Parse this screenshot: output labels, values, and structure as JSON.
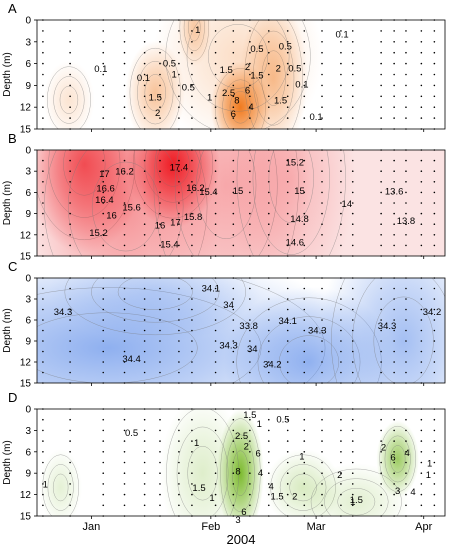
{
  "chart_data": {
    "type": "contour",
    "x_axis": {
      "label": "2004",
      "ticks": [
        "Jan",
        "Feb",
        "Mar",
        "Apr"
      ]
    },
    "y_axis": {
      "label": "Depth (m)",
      "ticks": [
        "0",
        "3",
        "6",
        "9",
        "12",
        "15"
      ],
      "range": [
        0,
        15
      ],
      "reversed": true
    },
    "panels": [
      {
        "letter": "A",
        "color": "#f07a1e",
        "base": "#ffffff",
        "contour_labels": [
          {
            "text": "1",
            "day": 136,
            "d": 1.3
          },
          {
            "text": "0.5",
            "day": 210,
            "d": 3.6
          },
          {
            "text": "0.1",
            "day": 258,
            "d": 1.9
          },
          {
            "text": "0.5",
            "day": 186,
            "d": 3.9
          },
          {
            "text": "0.1",
            "day": 54,
            "d": 6.7
          },
          {
            "text": "0.1",
            "day": 90,
            "d": 7.9
          },
          {
            "text": "0.5",
            "day": 112,
            "d": 5.9
          },
          {
            "text": "1",
            "day": 116,
            "d": 7.4
          },
          {
            "text": "0.5",
            "day": 128,
            "d": 9.2
          },
          {
            "text": "1.5",
            "day": 100,
            "d": 10.6
          },
          {
            "text": "2",
            "day": 102,
            "d": 12.7
          },
          {
            "text": "1",
            "day": 146,
            "d": 10.6
          },
          {
            "text": "1.5",
            "day": 160,
            "d": 6.8
          },
          {
            "text": "2",
            "day": 178,
            "d": 6.4
          },
          {
            "text": "1.5",
            "day": 186,
            "d": 7.6
          },
          {
            "text": "2.5",
            "day": 162,
            "d": 10.0
          },
          {
            "text": "6",
            "day": 166,
            "d": 12.9
          },
          {
            "text": "8",
            "day": 169,
            "d": 11.0
          },
          {
            "text": "6",
            "day": 178,
            "d": 9.6
          },
          {
            "text": "4",
            "day": 181,
            "d": 11.9
          },
          {
            "text": "2",
            "day": 204,
            "d": 6.6
          },
          {
            "text": "1.5",
            "day": 206,
            "d": 11.0
          },
          {
            "text": "0.5",
            "day": 218,
            "d": 6.6
          },
          {
            "text": "0.1",
            "day": 224,
            "d": 8.8
          },
          {
            "text": "0.1",
            "day": 236,
            "d": 13.3
          }
        ]
      },
      {
        "letter": "B",
        "color": "#ee1c24",
        "base": "#fbe3e3",
        "contour_labels": [
          {
            "text": "17",
            "day": 57,
            "d": 3.3
          },
          {
            "text": "16.2",
            "day": 74,
            "d": 3.0
          },
          {
            "text": "16.6",
            "day": 58,
            "d": 5.4
          },
          {
            "text": "16.4",
            "day": 57,
            "d": 7.0
          },
          {
            "text": "16",
            "day": 63,
            "d": 9.2
          },
          {
            "text": "15.6",
            "day": 80,
            "d": 8.1
          },
          {
            "text": "15.2",
            "day": 52,
            "d": 11.7
          },
          {
            "text": "17.4",
            "day": 120,
            "d": 2.4
          },
          {
            "text": "17",
            "day": 117,
            "d": 10.2
          },
          {
            "text": "16",
            "day": 104,
            "d": 10.6
          },
          {
            "text": "15.8",
            "day": 132,
            "d": 9.4
          },
          {
            "text": "16.2",
            "day": 134,
            "d": 5.3
          },
          {
            "text": "15.4",
            "day": 145,
            "d": 5.9
          },
          {
            "text": "15.4",
            "day": 112,
            "d": 13.3
          },
          {
            "text": "15",
            "day": 170,
            "d": 5.7
          },
          {
            "text": "15.2",
            "day": 218,
            "d": 1.7
          },
          {
            "text": "15",
            "day": 222,
            "d": 5.7
          },
          {
            "text": "14.8",
            "day": 222,
            "d": 9.7
          },
          {
            "text": "14.6",
            "day": 218,
            "d": 13.0
          },
          {
            "text": "14",
            "day": 262,
            "d": 7.6
          },
          {
            "text": "13.6",
            "day": 302,
            "d": 5.8
          },
          {
            "text": "13.8",
            "day": 312,
            "d": 10.0
          }
        ]
      },
      {
        "letter": "C",
        "color": "#4a7fe6",
        "base": "#ffffff",
        "contour_labels": [
          {
            "text": "34.1",
            "day": 147,
            "d": 1.4
          },
          {
            "text": "34",
            "day": 162,
            "d": 3.8
          },
          {
            "text": "34.3",
            "day": 22,
            "d": 4.8
          },
          {
            "text": "33.8",
            "day": 179,
            "d": 6.8
          },
          {
            "text": "34.1",
            "day": 212,
            "d": 6.1
          },
          {
            "text": "34.3",
            "day": 162,
            "d": 9.6
          },
          {
            "text": "34",
            "day": 182,
            "d": 10.1
          },
          {
            "text": "34.3",
            "day": 237,
            "d": 7.4
          },
          {
            "text": "34.4",
            "day": 80,
            "d": 11.5
          },
          {
            "text": "34.2",
            "day": 199,
            "d": 12.3
          },
          {
            "text": "34.3",
            "day": 296,
            "d": 6.8
          },
          {
            "text": "34.2",
            "day": 334,
            "d": 4.8
          }
        ]
      },
      {
        "letter": "D",
        "color": "#7cba2e",
        "base": "#ffffff",
        "contour_labels": [
          {
            "text": "0.5",
            "day": 80,
            "d": 3.3
          },
          {
            "text": "1.5",
            "day": 180,
            "d": 0.8
          },
          {
            "text": "0.5",
            "day": 208,
            "d": 1.4
          },
          {
            "text": "1",
            "day": 188,
            "d": 2.0
          },
          {
            "text": "2.5",
            "day": 173,
            "d": 3.7
          },
          {
            "text": "1",
            "day": 135,
            "d": 4.7
          },
          {
            "text": "2",
            "day": 177,
            "d": 5.2
          },
          {
            "text": "6",
            "day": 187,
            "d": 6.2
          },
          {
            "text": "4",
            "day": 189,
            "d": 8.9
          },
          {
            "text": "8",
            "day": 170,
            "d": 8.7
          },
          {
            "text": "1",
            "day": 7,
            "d": 10.5
          },
          {
            "text": "1.5",
            "day": 137,
            "d": 11.0
          },
          {
            "text": "1",
            "day": 148,
            "d": 12.4
          },
          {
            "text": "6",
            "day": 175,
            "d": 14.4
          },
          {
            "text": "3",
            "day": 170,
            "d": 15.5
          },
          {
            "text": "4",
            "day": 198,
            "d": 10.8
          },
          {
            "text": "1.5",
            "day": 203,
            "d": 12.2
          },
          {
            "text": "2",
            "day": 218,
            "d": 12.2
          },
          {
            "text": "1",
            "day": 224,
            "d": 6.6
          },
          {
            "text": "2",
            "day": 256,
            "d": 9.2
          },
          {
            "text": "1.5",
            "day": 270,
            "d": 12.7
          },
          {
            "text": "1",
            "day": 267,
            "d": 13.0
          },
          {
            "text": "2",
            "day": 293,
            "d": 5.3
          },
          {
            "text": "6",
            "day": 301,
            "d": 6.7
          },
          {
            "text": "4",
            "day": 313,
            "d": 6.1
          },
          {
            "text": "3",
            "day": 305,
            "d": 11.4
          },
          {
            "text": "1",
            "day": 332,
            "d": 7.6
          },
          {
            "text": "4",
            "day": 318,
            "d": 11.6
          },
          {
            "text": "1",
            "day": 331,
            "d": 9.2
          }
        ]
      }
    ]
  }
}
